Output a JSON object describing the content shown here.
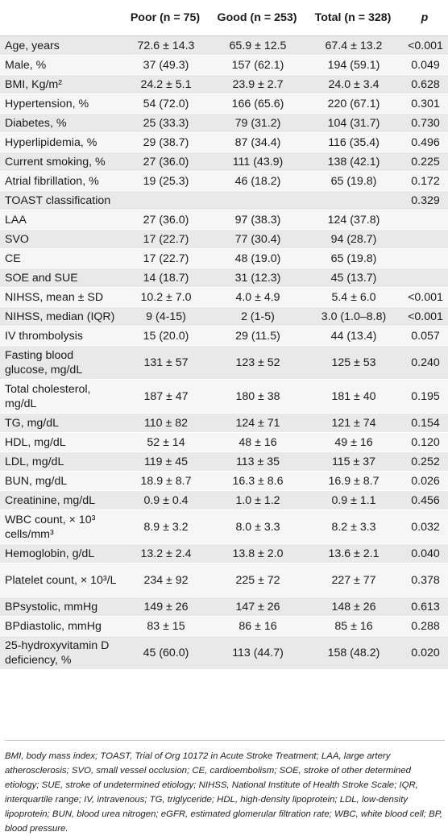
{
  "header": {
    "col_label": "",
    "col_poor": "Poor (n = 75)",
    "col_good": "Good (n = 253)",
    "col_total": "Total (n = 328)",
    "col_p": "p"
  },
  "rows": [
    {
      "label": "Age, years",
      "poor": "72.6 ± 14.3",
      "good": "65.9 ± 12.5",
      "total": "67.4 ± 13.2",
      "p": "<0.001",
      "h": 1
    },
    {
      "label": "Male, %",
      "poor": "37 (49.3)",
      "good": "157 (62.1)",
      "total": "194 (59.1)",
      "p": "0.049",
      "h": 1
    },
    {
      "label": "BMI, Kg/m²",
      "poor": "24.2 ± 5.1",
      "good": "23.9 ± 2.7",
      "total": "24.0 ± 3.4",
      "p": "0.628",
      "h": 1
    },
    {
      "label": "Hypertension, %",
      "poor": "54 (72.0)",
      "good": "166 (65.6)",
      "total": "220 (67.1)",
      "p": "0.301",
      "h": 1
    },
    {
      "label": "Diabetes, %",
      "poor": "25 (33.3)",
      "good": "79 (31.2)",
      "total": "104 (31.7)",
      "p": "0.730",
      "h": 1
    },
    {
      "label": "Hyperlipidemia, %",
      "poor": "29 (38.7)",
      "good": "87 (34.4)",
      "total": "116 (35.4)",
      "p": "0.496",
      "h": 1
    },
    {
      "label": "Current smoking, %",
      "poor": "27 (36.0)",
      "good": "111 (43.9)",
      "total": "138 (42.1)",
      "p": "0.225",
      "h": 1
    },
    {
      "label": "Atrial fibrillation, %",
      "poor": "19 (25.3)",
      "good": "46 (18.2)",
      "total": "65 (19.8)",
      "p": "0.172",
      "h": 1
    },
    {
      "label": "TOAST classification",
      "poor": "",
      "good": "",
      "total": "",
      "p": "0.329",
      "h": 1
    },
    {
      "label": "LAA",
      "poor": "27 (36.0)",
      "good": "97 (38.3)",
      "total": "124 (37.8)",
      "p": "",
      "h": 1
    },
    {
      "label": "SVO",
      "poor": "17 (22.7)",
      "good": "77 (30.4)",
      "total": "94 (28.7)",
      "p": "",
      "h": 1
    },
    {
      "label": "CE",
      "poor": "17 (22.7)",
      "good": "48 (19.0)",
      "total": "65 (19.8)",
      "p": "",
      "h": 1
    },
    {
      "label": "SOE and SUE",
      "poor": "14 (18.7)",
      "good": "31 (12.3)",
      "total": "45 (13.7)",
      "p": "",
      "h": 1
    },
    {
      "label": "NIHSS, mean ± SD",
      "poor": "10.2 ± 7.0",
      "good": "4.0 ± 4.9",
      "total": "5.4 ± 6.0",
      "p": "<0.001",
      "h": 1
    },
    {
      "label": "NIHSS, median (IQR)",
      "poor": "9 (4-15)",
      "good": "2 (1-5)",
      "total": "3.0 (1.0–8.8)",
      "p": "<0.001",
      "h": 1
    },
    {
      "label": "IV thrombolysis",
      "poor": "15 (20.0)",
      "good": "29 (11.5)",
      "total": "44 (13.4)",
      "p": "0.057",
      "h": 1
    },
    {
      "label": "Fasting blood glucose, mg/dL",
      "poor": "131 ± 57",
      "good": "123 ± 52",
      "total": "125 ± 53",
      "p": "0.240",
      "h": 2
    },
    {
      "label": "Total cholesterol, mg/dL",
      "poor": "187 ± 47",
      "good": "180 ± 38",
      "total": "181 ± 40",
      "p": "0.195",
      "h": 2
    },
    {
      "label": "TG, mg/dL",
      "poor": "110 ± 82",
      "good": "124 ± 71",
      "total": "121 ± 74",
      "p": "0.154",
      "h": 1
    },
    {
      "label": "HDL, mg/dL",
      "poor": "52 ± 14",
      "good": "48 ± 16",
      "total": "49 ± 16",
      "p": "0.120",
      "h": 1
    },
    {
      "label": "LDL, mg/dL",
      "poor": "119 ± 45",
      "good": "113 ± 35",
      "total": "115 ± 37",
      "p": "0.252",
      "h": 1
    },
    {
      "label": "BUN, mg/dL",
      "poor": "18.9 ± 8.7",
      "good": "16.3 ± 8.6",
      "total": "16.9 ± 8.7",
      "p": "0.026",
      "h": 1
    },
    {
      "label": "Creatinine, mg/dL",
      "poor": "0.9 ± 0.4",
      "good": "1.0 ± 1.2",
      "total": "0.9 ± 1.1",
      "p": "0.456",
      "h": 1
    },
    {
      "label": "WBC count, × 10³ cells/mm³",
      "poor": "8.9 ± 3.2",
      "good": "8.0 ± 3.3",
      "total": "8.2 ± 3.3",
      "p": "0.032",
      "h": 2
    },
    {
      "label": "Hemoglobin, g/dL",
      "poor": "13.2 ± 2.4",
      "good": "13.8 ± 2.0",
      "total": "13.6 ± 2.1",
      "p": "0.040",
      "h": 1
    },
    {
      "label": "Platelet count, × 10³/L",
      "poor": "234 ± 92",
      "good": "225 ± 72",
      "total": "227 ± 77",
      "p": "0.378",
      "h": 2
    },
    {
      "label": "BPsystolic, mmHg",
      "poor": "149 ± 26",
      "good": "147 ± 26",
      "total": "148 ± 26",
      "p": "0.613",
      "h": 1
    },
    {
      "label": "BPdiastolic, mmHg",
      "poor": "83 ± 15",
      "good": "86 ± 16",
      "total": "85 ± 16",
      "p": "0.288",
      "h": 1
    },
    {
      "label": "25-hydroxyvitamin D deficiency, %",
      "poor": "45 (60.0)",
      "good": "113 (44.7)",
      "total": "158 (48.2)",
      "p": "0.020",
      "h": 2
    }
  ],
  "footnote": "BMI, body mass index; TOAST, Trial of Org 10172 in Acute Stroke Treatment; LAA, large artery atherosclerosis; SVO, small vessel occlusion; CE, cardioembolism; SOE, stroke of other determined etiology; SUE, stroke of undetermined etiology; NIHSS, National Institute of Health Stroke Scale; IQR, interquartile range; IV, intravenous; TG, triglyceride; HDL, high-density lipoprotein; LDL, low-density lipoprotein; BUN, blood urea nitrogen; eGFR, estimated glomerular filtration rate; WBC, white blood cell; BP, blood pressure."
}
